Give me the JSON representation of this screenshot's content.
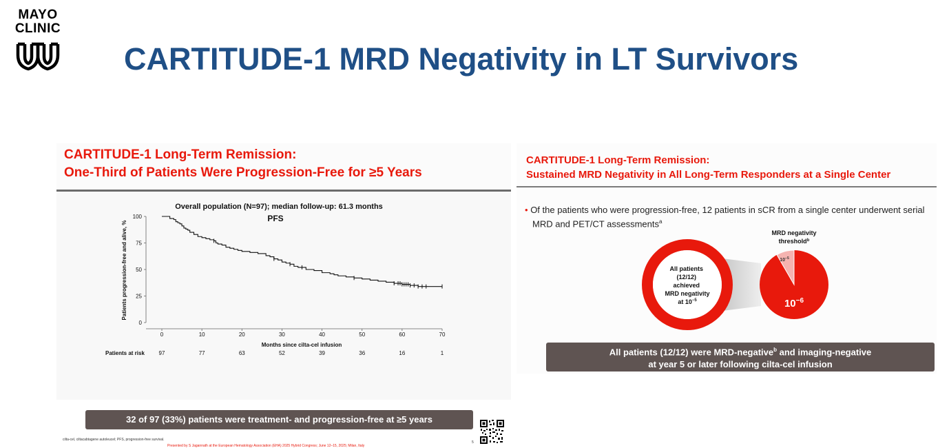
{
  "logo": {
    "line1": "MAYO",
    "line2": "CLINIC"
  },
  "title": "CARTITUDE-1 MRD Negativity in LT Survivors",
  "left_panel": {
    "title_line1": "CARTITUDE-1 Long-Term Remission:",
    "title_line2": "One-Third of Patients Were Progression-Free for ≥5 Years",
    "chart_caption": "Overall population (N=97); median follow-up: 61.3 months",
    "chart_label": "PFS",
    "callout": "32 of 97 (33%) patients were treatment- and progression-free at ≥5 years",
    "footnote_abbrev": "cilta-cel, ciltacabtagene autoleucel; PFS, progression-free survival.",
    "footnote_presented": "Presented by S Jagannath at the European Hematology Association (EHA) 2025 Hybrid Congress; June 12–15, 2025; Milan, Italy",
    "page_number": "5"
  },
  "chart_data": {
    "type": "line",
    "title": "Overall population (N=97); median follow-up: 61.3 months",
    "subtitle": "PFS",
    "xlabel": "Months since cilta-cel infusion",
    "ylabel": "Patients progression-free and alive, %",
    "xlim": [
      0,
      70
    ],
    "ylim": [
      0,
      100
    ],
    "x_ticks": [
      0,
      10,
      20,
      30,
      40,
      50,
      60,
      70
    ],
    "y_ticks": [
      0,
      25,
      50,
      75,
      100
    ],
    "risk_table": {
      "label": "Patients at risk",
      "values": [
        97,
        77,
        63,
        52,
        39,
        36,
        16,
        1
      ]
    },
    "series": [
      {
        "name": "PFS",
        "x": [
          0,
          1.5,
          2,
          3,
          3.5,
          4,
          4.5,
          5,
          5.5,
          6,
          6.5,
          7,
          8,
          9,
          10,
          11,
          12,
          13,
          13.5,
          14,
          15,
          16,
          17,
          18,
          19,
          20,
          22,
          24,
          26,
          27,
          28,
          29,
          30,
          31,
          32,
          33,
          34,
          36,
          38,
          40,
          42,
          43,
          44,
          46,
          48,
          50,
          52,
          54,
          56,
          58,
          60,
          62,
          64,
          66,
          68,
          70
        ],
        "y": [
          100,
          100,
          98,
          97,
          95,
          94,
          93,
          91,
          89,
          88,
          87,
          85,
          83,
          81,
          80,
          79,
          78,
          77,
          75,
          74,
          73,
          71,
          70,
          69,
          68,
          67,
          66,
          65,
          63,
          62,
          60,
          59,
          57,
          56,
          55,
          53,
          52,
          50,
          49,
          47,
          46,
          45,
          44,
          43,
          42,
          41,
          40,
          39,
          38,
          37,
          36,
          35,
          34,
          34,
          34,
          34
        ]
      }
    ],
    "censor_x": [
      13,
      28,
      32,
      35,
      48,
      58,
      59,
      59.5,
      60,
      60.5,
      61,
      61.5,
      62,
      63,
      64,
      65,
      66,
      70
    ]
  },
  "right_panel": {
    "title_line1": "CARTITUDE-1 Long-Term Remission:",
    "title_line2": "Sustained MRD Negativity in All Long-Term Responders at a Single Center",
    "bullet_text": "Of the patients who were progression-free, 12 patients in sCR from a single center underwent serial MRD and PET/CT assessments",
    "bullet_sup": "a",
    "donut_text": [
      "All patients",
      "(12/12)",
      "achieved",
      "MRD negativity"
    ],
    "donut_last_base": "at 10",
    "donut_last_exp": "−5",
    "threshold_label_line1": "MRD negativity",
    "threshold_label_line2": "threshold",
    "threshold_label_sup": "b",
    "pie_small_base": "10",
    "pie_small_exp": "−5",
    "pie_large_base": "10",
    "pie_large_exp": "−6",
    "pie_small_fraction": 0.0833,
    "callout_line1_a": "All patients (12/12) were MRD-negative",
    "callout_line1_sup": "b",
    "callout_line1_b": " and imaging-negative",
    "callout_line2": "at year 5 or later following cilta-cel infusion"
  },
  "colors": {
    "title_blue": "#1f4f86",
    "accent_red": "#e8190c",
    "callout_bg": "#5f5452",
    "light_pink": "#f5b3b0"
  }
}
